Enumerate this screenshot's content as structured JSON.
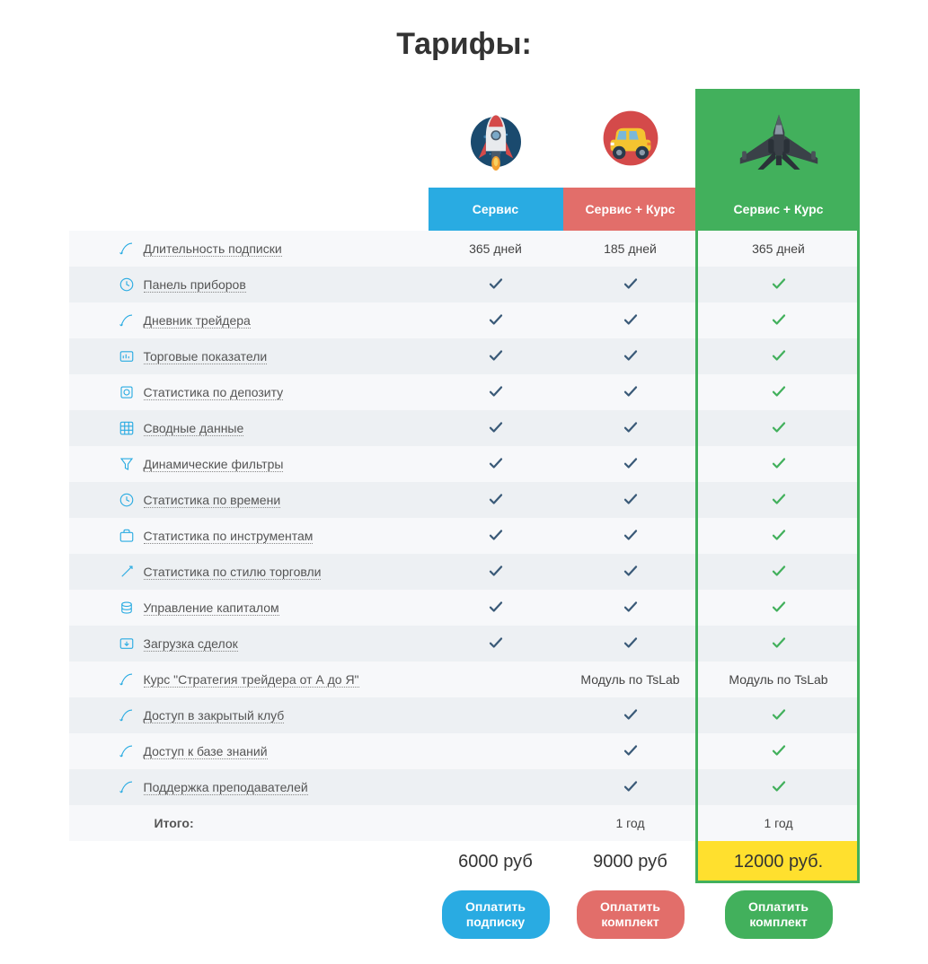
{
  "title": "Тарифы:",
  "colors": {
    "blue": "#29abe2",
    "red": "#e26e6a",
    "green": "#42b05c",
    "yellow": "#ffe02e",
    "row_even": "#edf0f3",
    "row_odd": "#f7f8fa",
    "check_dark": "#3a5a78",
    "text": "#444444"
  },
  "plans": [
    {
      "name": "Сервис",
      "color": "blue"
    },
    {
      "name": "Сервис + Курс",
      "color": "red"
    },
    {
      "name": "Сервис + Курс",
      "color": "green"
    }
  ],
  "features": [
    {
      "label": "Длительность подписки",
      "values": [
        "365 дней",
        "185 дней",
        "365 дней"
      ]
    },
    {
      "label": "Панель приборов",
      "values": [
        "✓",
        "✓",
        "✓"
      ]
    },
    {
      "label": "Дневник трейдера",
      "values": [
        "✓",
        "✓",
        "✓"
      ]
    },
    {
      "label": "Торговые показатели",
      "values": [
        "✓",
        "✓",
        "✓"
      ]
    },
    {
      "label": "Статистика по депозиту",
      "values": [
        "✓",
        "✓",
        "✓"
      ]
    },
    {
      "label": "Сводные данные",
      "values": [
        "✓",
        "✓",
        "✓"
      ]
    },
    {
      "label": "Динамические фильтры",
      "values": [
        "✓",
        "✓",
        "✓"
      ]
    },
    {
      "label": "Статистика по времени",
      "values": [
        "✓",
        "✓",
        "✓"
      ]
    },
    {
      "label": "Статистика по инструментам",
      "values": [
        "✓",
        "✓",
        "✓"
      ]
    },
    {
      "label": "Статистика по стилю торговли",
      "values": [
        "✓",
        "✓",
        "✓"
      ]
    },
    {
      "label": "Управление капиталом",
      "values": [
        "✓",
        "✓",
        "✓"
      ]
    },
    {
      "label": "Загрузка сделок",
      "values": [
        "✓",
        "✓",
        "✓"
      ]
    },
    {
      "label": "Курс \"Стратегия трейдера от А до Я\"",
      "values": [
        "",
        "Модуль по TsLab",
        "Модуль по TsLab"
      ]
    },
    {
      "label": "Доступ в закрытый клуб",
      "values": [
        "",
        "✓",
        "✓"
      ]
    },
    {
      "label": "Доступ к базе знаний",
      "values": [
        "",
        "✓",
        "✓"
      ]
    },
    {
      "label": "Поддержка преподавателей",
      "values": [
        "",
        "✓",
        "✓"
      ]
    }
  ],
  "total_label": "Итого:",
  "totals": [
    "",
    "1 год",
    "1 год"
  ],
  "prices": [
    "6000 руб",
    "9000 руб",
    "12000 руб."
  ],
  "buttons": [
    {
      "line1": "Оплатить",
      "line2": "подписку"
    },
    {
      "line1": "Оплатить",
      "line2": "комплект"
    },
    {
      "line1": "Оплатить",
      "line2": "комплект"
    }
  ]
}
